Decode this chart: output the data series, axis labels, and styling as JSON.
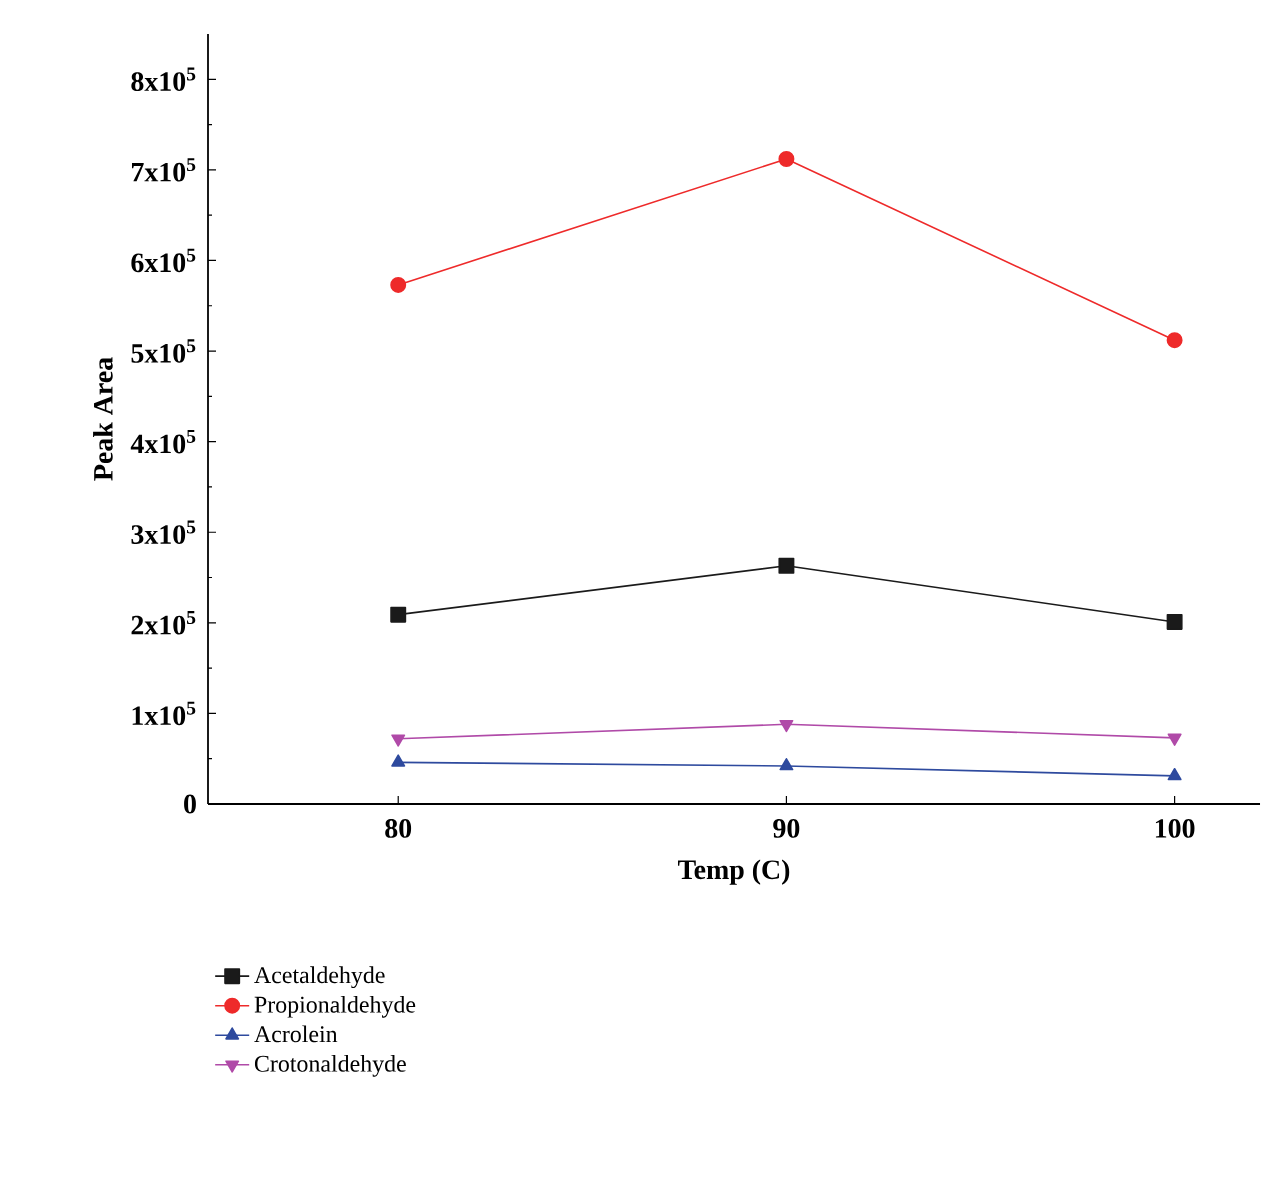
{
  "chart_data": {
    "type": "line",
    "xlabel": "Temp (C)",
    "ylabel": "Peak Area",
    "x": [
      80,
      90,
      100
    ],
    "series": [
      {
        "name": "Acetaldehyde",
        "color": "#1a1a1a",
        "marker": "square",
        "values": [
          209000,
          263000,
          201000
        ]
      },
      {
        "name": "Propionaldehyde",
        "color": "#ee2a2a",
        "marker": "circle",
        "values": [
          573000,
          712000,
          512000
        ]
      },
      {
        "name": "Acrolein",
        "color": "#2e4a9e",
        "marker": "triangle",
        "values": [
          46000,
          42000,
          31000
        ]
      },
      {
        "name": "Crotonaldehyde",
        "color": "#b04aa8",
        "marker": "triangle down",
        "values": [
          72000,
          88000,
          73000
        ]
      }
    ],
    "xlim": [
      75.1,
      102.2
    ],
    "xticks": [
      80,
      90,
      100
    ],
    "ylim": [
      0,
      850000
    ],
    "yticks": [
      0,
      {
        "value": 100000,
        "label": "1x10$^{5}$"
      },
      {
        "value": 200000,
        "label": "2x10$^{5}$"
      },
      {
        "value": 300000,
        "label": "3x10$^{5}$"
      },
      {
        "value": 400000,
        "label": "4x10$^{5}$"
      },
      {
        "value": 500000,
        "label": "5x10$^{5}$"
      },
      {
        "value": 600000,
        "label": "6x10$^{5}$"
      },
      {
        "value": 700000,
        "label": "7x10$^{5}$"
      },
      {
        "value": 800000,
        "label": "8x10$^{5}$"
      }
    ],
    "legend": "bottom",
    "grid": false,
    "line_style": "solid"
  }
}
